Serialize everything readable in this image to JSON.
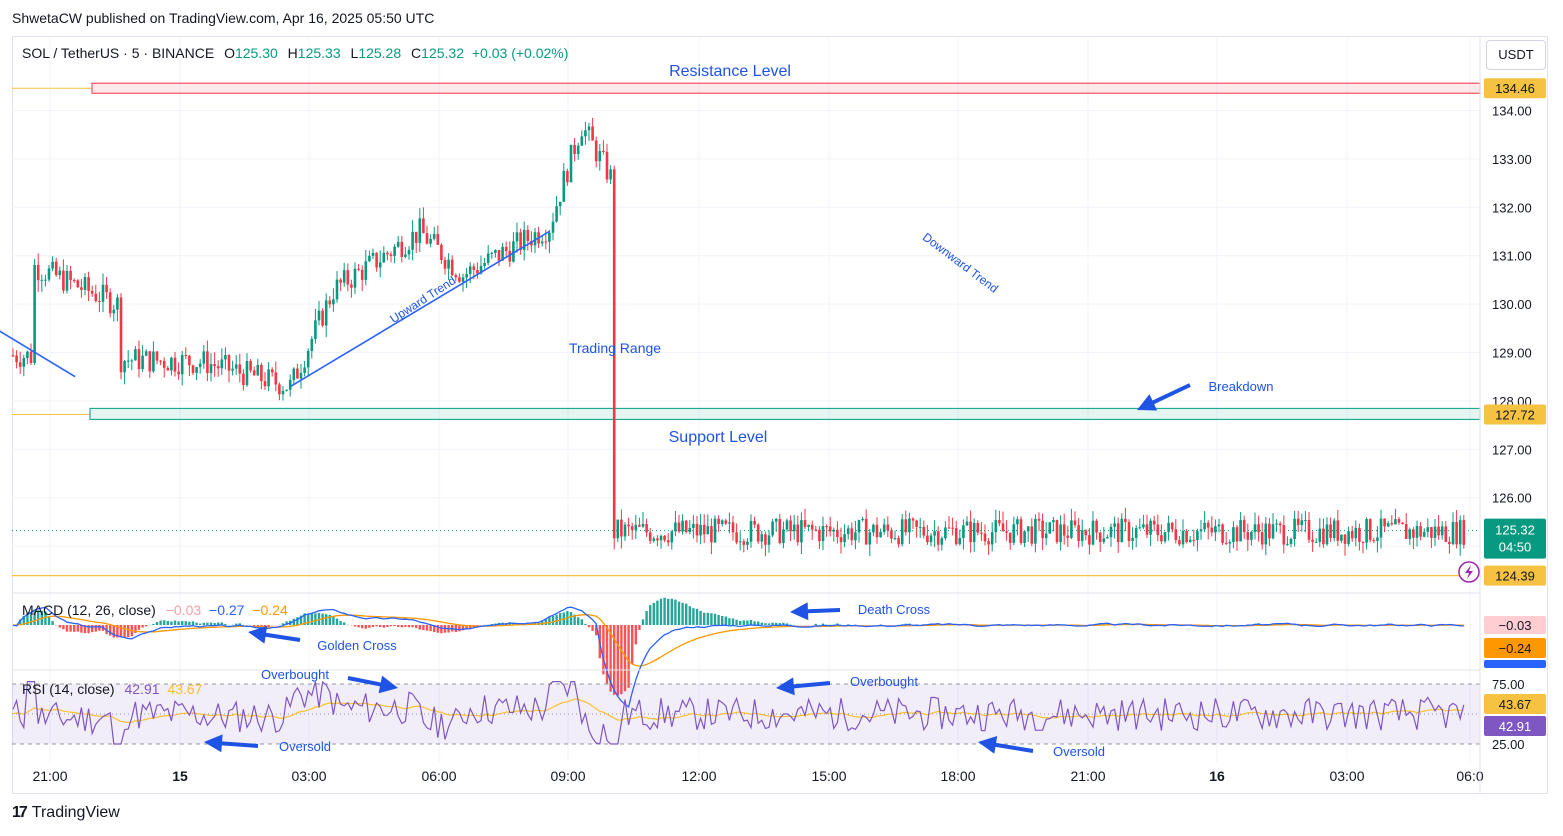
{
  "publish_line": "ShwetaCW published on TradingView.com, Apr 16, 2025 05:50 UTC",
  "legend": {
    "symbol": "SOL / TetherUS · 5 · BINANCE",
    "o_label": "O",
    "o": "125.30",
    "h_label": "H",
    "h": "125.33",
    "l_label": "L",
    "l": "125.28",
    "c_label": "C",
    "c": "125.32",
    "change": "+0.03 (+0.02%)"
  },
  "currency": "USDT",
  "footer": {
    "logo": "17",
    "brand": "TradingView"
  },
  "colors": {
    "up": "#089981",
    "down": "#f23645",
    "blue": "#2962ff",
    "orange": "#ff9800",
    "rsi": "#7e57c2",
    "rsi_ma": "#fbc02d",
    "annotation": "#1e53e5",
    "resistance": "#f7525f",
    "support": "#22ab94"
  },
  "annotations": {
    "resistance": "Resistance Level",
    "support": "Support Level",
    "trading_range": "Trading Range",
    "upward": "Upward Trend",
    "downward": "Downward Trend",
    "breakdown": "Breakdown",
    "golden_cross": "Golden Cross",
    "death_cross": "Death Cross",
    "overbought1": "Overbought",
    "overbought2": "Overbought",
    "oversold1": "Oversold",
    "oversold2": "Oversold"
  },
  "macd": {
    "label": "MACD (12, 26, close)",
    "v1": "−0.03",
    "v2": "−0.27",
    "v3": "−0.24",
    "tag_hist": "−0.03",
    "tag_signal": "−0.24",
    "tag_macd": "−0.27"
  },
  "rsi": {
    "label": "RSI (14, close)",
    "v1": "42.91",
    "v2": "43.67",
    "tag_ma": "43.67",
    "tag_rsi": "42.91"
  },
  "chart_data": [
    {
      "type": "candlestick",
      "title": "SOL / TetherUS · 5 · BINANCE",
      "ylabel": "USDT",
      "ylim": [
        124.2,
        134.9
      ],
      "y_ticks": [
        "134.00",
        "133.00",
        "132.00",
        "131.00",
        "130.00",
        "129.00",
        "128.00",
        "127.00",
        "126.00",
        "125.00"
      ],
      "x_ticks": [
        "21:00",
        "15",
        "03:00",
        "06:00",
        "09:00",
        "12:00",
        "15:00",
        "18:00",
        "21:00",
        "16",
        "03:00",
        "06:0"
      ],
      "price_tags": {
        "resistance": "134.46",
        "support": "127.72",
        "last": "125.32",
        "countdown": "04:50",
        "low": "124.39"
      },
      "levels": {
        "resistance": 134.46,
        "support": 127.72,
        "low": 124.39,
        "last": 125.32
      },
      "series": [
        {
          "name": "Close path (approx.)",
          "x": [
            "21:00",
            "23:00",
            "15 00:00",
            "01:00",
            "03:00",
            "04:00",
            "06:00",
            "07:00",
            "09:00",
            "09:45",
            "10:30",
            "12:00",
            "13:00",
            "13:50",
            "14:05",
            "15:00",
            "16:00",
            "17:00",
            "18:00",
            "19:00",
            "21:00",
            "21:30",
            "22:00",
            "16 00:00",
            "01:00",
            "02:00",
            "03:00",
            "05:00",
            "05:30",
            "06:00"
          ],
          "y": [
            130.8,
            130.0,
            129.6,
            128.8,
            128.3,
            130.3,
            131.5,
            130.6,
            131.6,
            133.7,
            132.5,
            131.8,
            132.4,
            134.4,
            132.6,
            130.7,
            130.1,
            129.5,
            128.2,
            127.8,
            127.8,
            128.4,
            127.6,
            126.4,
            126.9,
            126.2,
            126.9,
            125.9,
            125.6,
            125.3
          ]
        }
      ],
      "trend_lines": [
        {
          "name": "Upward Trend",
          "from": [
            "03:00",
            128.3
          ],
          "to": [
            "09:00",
            131.5
          ]
        },
        {
          "name": "Downward Trend",
          "from": [
            "14:00",
            132.8
          ],
          "to": [
            "22:00",
            128.5
          ]
        }
      ]
    },
    {
      "type": "line",
      "title": "MACD (12, 26, close)",
      "series": [
        {
          "name": "MACD",
          "last": -0.27
        },
        {
          "name": "Signal",
          "last": -0.24
        },
        {
          "name": "Histogram",
          "last": -0.03
        }
      ]
    },
    {
      "type": "line",
      "title": "RSI (14, close)",
      "ylim": [
        15,
        85
      ],
      "y_ticks": [
        "75.00",
        "25.00"
      ],
      "bands": [
        30,
        70
      ],
      "series": [
        {
          "name": "RSI",
          "last": 42.91
        },
        {
          "name": "RSI MA",
          "last": 43.67
        }
      ]
    }
  ]
}
